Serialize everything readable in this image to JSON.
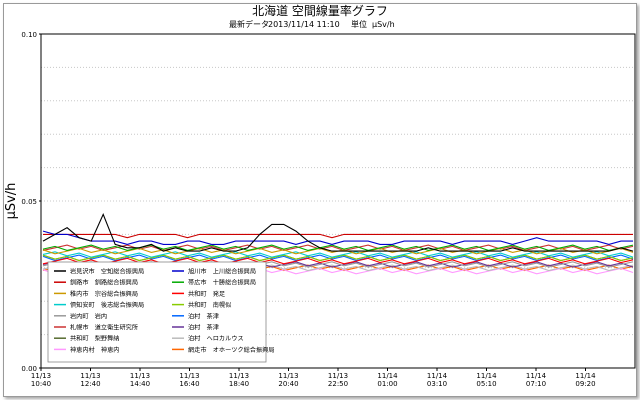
{
  "chart_data": {
    "type": "line",
    "title": "北海道 空間線量率グラフ",
    "subtitle_label": "最新データ",
    "subtitle_time": "2013/11/14 11:10",
    "subtitle_unit_label": "単位",
    "subtitle_unit": "μSv/h",
    "ylabel": "μSv/h",
    "xlabel": "",
    "ylim": [
      0,
      0.1
    ],
    "y_ticks": [
      "0.00",
      "0.05",
      "0.10"
    ],
    "grid": "horizontal-dotted",
    "legend_position": "lower-left",
    "x_tick_labels": [
      {
        "date": "11/13",
        "time": "10:40"
      },
      {
        "date": "11/13",
        "time": "12:40"
      },
      {
        "date": "11/13",
        "time": "14:40"
      },
      {
        "date": "11/13",
        "time": "16:40"
      },
      {
        "date": "11/13",
        "time": "18:40"
      },
      {
        "date": "11/13",
        "time": "20:40"
      },
      {
        "date": "11/13",
        "time": "22:50"
      },
      {
        "date": "11/14",
        "time": "01:00"
      },
      {
        "date": "11/14",
        "time": "03:10"
      },
      {
        "date": "11/14",
        "time": "05:10"
      },
      {
        "date": "11/14",
        "time": "07:10"
      },
      {
        "date": "11/14",
        "time": "09:20"
      }
    ],
    "series": [
      {
        "name": "岩見沢市　空知総合振興局",
        "color": "#000000",
        "base": 0.037,
        "values": [
          0.038,
          0.04,
          0.042,
          0.039,
          0.038,
          0.046,
          0.037,
          0.036,
          0.036,
          0.037,
          0.035,
          0.036,
          0.035,
          0.035,
          0.036,
          0.035,
          0.035,
          0.036,
          0.04,
          0.043,
          0.043,
          0.041,
          0.038,
          0.036,
          0.035,
          0.035,
          0.035,
          0.035,
          0.035,
          0.035,
          0.035,
          0.035,
          0.036,
          0.035,
          0.035,
          0.035,
          0.035,
          0.035,
          0.035,
          0.036,
          0.035,
          0.035,
          0.035,
          0.035,
          0.035,
          0.035,
          0.035,
          0.035,
          0.036,
          0.035
        ]
      },
      {
        "name": "旭川市　上川総合振興局",
        "color": "#0000cc",
        "base": 0.037,
        "values": [
          0.041,
          0.04,
          0.04,
          0.039,
          0.038,
          0.038,
          0.038,
          0.037,
          0.038,
          0.038,
          0.037,
          0.037,
          0.038,
          0.038,
          0.037,
          0.037,
          0.038,
          0.038,
          0.038,
          0.038,
          0.038,
          0.037,
          0.038,
          0.038,
          0.037,
          0.038,
          0.038,
          0.038,
          0.037,
          0.037,
          0.038,
          0.038,
          0.038,
          0.038,
          0.037,
          0.038,
          0.038,
          0.038,
          0.038,
          0.037,
          0.038,
          0.039,
          0.038,
          0.038,
          0.038,
          0.038,
          0.038,
          0.037,
          0.038,
          0.038
        ]
      },
      {
        "name": "釧路市　釧路総合振興局",
        "color": "#cc0000",
        "base": 0.039,
        "values": [
          0.04,
          0.04,
          0.04,
          0.04,
          0.04,
          0.04,
          0.04,
          0.039,
          0.04,
          0.04,
          0.04,
          0.04,
          0.039,
          0.04,
          0.04,
          0.04,
          0.04,
          0.04,
          0.04,
          0.04,
          0.04,
          0.04,
          0.04,
          0.04,
          0.039,
          0.04,
          0.04,
          0.04,
          0.04,
          0.04,
          0.04,
          0.04,
          0.04,
          0.04,
          0.04,
          0.04,
          0.04,
          0.04,
          0.04,
          0.04,
          0.04,
          0.04,
          0.04,
          0.04,
          0.04,
          0.04,
          0.04,
          0.04,
          0.04,
          0.04
        ]
      },
      {
        "name": "帯広市　十勝総合振興局",
        "color": "#00aa00",
        "base": 0.036,
        "values": []
      },
      {
        "name": "稚内市　宗谷総合振興局",
        "color": "#cc9900",
        "base": 0.035,
        "values": []
      },
      {
        "name": "共和町　発足",
        "color": "#ff0000",
        "base": 0.032,
        "values": []
      },
      {
        "name": "倶知安町　後志総合振興局",
        "color": "#00cccc",
        "base": 0.034,
        "values": []
      },
      {
        "name": "共和町　南幌似",
        "color": "#88cc00",
        "base": 0.033,
        "values": []
      },
      {
        "name": "岩内町　岩内",
        "color": "#999999",
        "base": 0.031,
        "values": []
      },
      {
        "name": "泊村　茶津",
        "color": "#0066ff",
        "base": 0.033,
        "values": []
      },
      {
        "name": "札幌市　道立衛生研究所",
        "color": "#cc3333",
        "base": 0.036,
        "values": []
      },
      {
        "name": "泊村　茶津",
        "color": "#663399",
        "base": 0.031,
        "values": []
      },
      {
        "name": "共和町　梨野舞納",
        "color": "#556b2f",
        "base": 0.033,
        "values": []
      },
      {
        "name": "泊村　ヘロカルウス",
        "color": "#bbbbbb",
        "base": 0.03,
        "values": []
      },
      {
        "name": "神恵内村　神恵内",
        "color": "#ff99ff",
        "base": 0.029,
        "values": []
      },
      {
        "name": "網走市　オホーツク総合振興局",
        "color": "#ff6600",
        "base": 0.03,
        "values": []
      }
    ]
  }
}
